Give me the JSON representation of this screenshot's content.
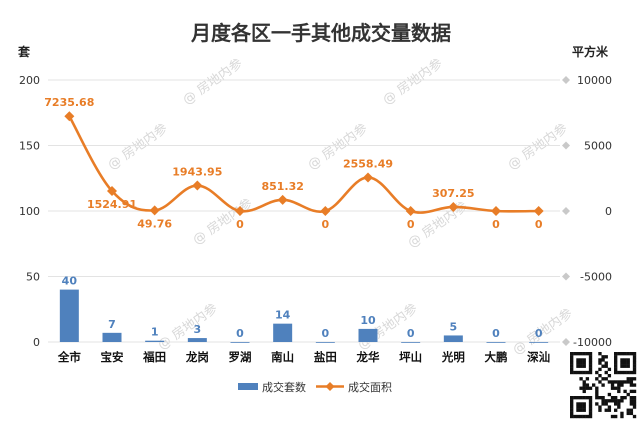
{
  "chart_data": {
    "type": "bar+line",
    "title": "月度各区一手其他成交量数据",
    "left_unit": "套",
    "right_unit": "平方米",
    "categories": [
      "全市",
      "宝安",
      "福田",
      "龙岗",
      "罗湖",
      "南山",
      "盐田",
      "龙华",
      "坪山",
      "光明",
      "大鹏",
      "深汕"
    ],
    "series": [
      {
        "name": "成交套数",
        "kind": "bar",
        "axis": "left",
        "color": "#4f81bd",
        "values": [
          40,
          7,
          1,
          3,
          0,
          14,
          0,
          10,
          0,
          5,
          0,
          0
        ]
      },
      {
        "name": "成交面积",
        "kind": "line",
        "axis": "right",
        "color": "#e87d27",
        "values": [
          7235.68,
          1524.91,
          49.76,
          1943.95,
          0,
          851.32,
          0,
          2558.49,
          0,
          307.25,
          0,
          0
        ],
        "labels": [
          "7235.68",
          "1524.91",
          "49.76",
          "1943.95",
          "0",
          "851.32",
          "0",
          "2558.49",
          "0",
          "307.25",
          "0",
          "0"
        ]
      }
    ],
    "left_ticks": [
      0,
      50,
      100,
      150,
      200
    ],
    "right_ticks": [
      -10000,
      -5000,
      0,
      5000,
      10000
    ],
    "grid": true,
    "legend": "bottom"
  },
  "watermark_text": "@ 房地内参"
}
